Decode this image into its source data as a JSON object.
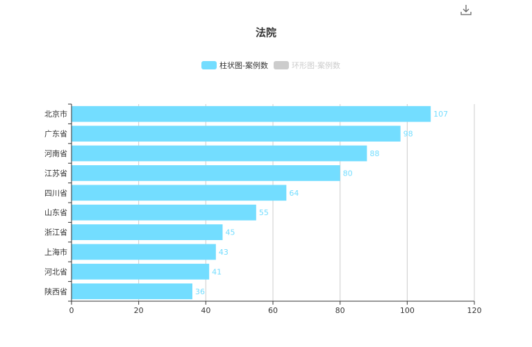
{
  "title": "法院",
  "toolbox": {
    "icon": "download-icon"
  },
  "legend": [
    {
      "name": "柱状图-案例数",
      "color": "#73ddff",
      "active": true
    },
    {
      "name": "环形图-案例数",
      "color": "#cccccc",
      "active": false
    }
  ],
  "chart_data": {
    "type": "bar",
    "orientation": "horizontal",
    "categories": [
      "北京市",
      "广东省",
      "河南省",
      "江苏省",
      "四川省",
      "山东省",
      "浙江省",
      "上海市",
      "河北省",
      "陕西省"
    ],
    "series": [
      {
        "name": "柱状图-案例数",
        "values": [
          107,
          98,
          88,
          80,
          64,
          55,
          45,
          43,
          41,
          36
        ]
      }
    ],
    "xlim": [
      0,
      120
    ],
    "xticks": [
      0,
      20,
      40,
      60,
      80,
      100,
      120
    ],
    "grid": true,
    "legend_position": "top-center",
    "colors": {
      "bar": "#73ddff",
      "label": "#73ddff",
      "axis": "#333333",
      "grid": "#cccccc"
    }
  }
}
